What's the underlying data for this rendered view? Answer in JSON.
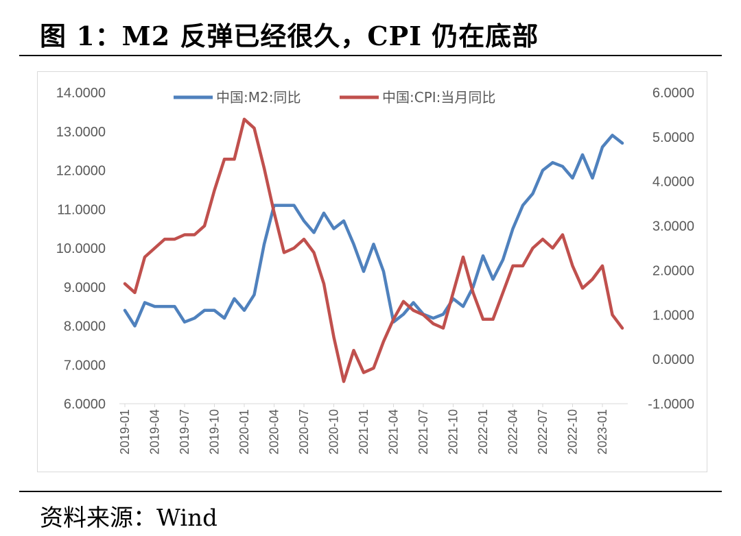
{
  "figure": {
    "title": "图 1：M2 反弹已经很久，CPI 仍在底部",
    "source": "资料来源：Wind"
  },
  "chart_data": {
    "type": "line",
    "title": "",
    "xlabel": "",
    "ylabel_left": "",
    "ylabel_right": "",
    "grid": false,
    "legend_position": "top-center",
    "ylim_left": [
      6,
      14
    ],
    "ylim_right": [
      -1,
      6
    ],
    "yticks_left": [
      "6.0000",
      "7.0000",
      "8.0000",
      "9.0000",
      "10.0000",
      "11.0000",
      "12.0000",
      "13.0000",
      "14.0000"
    ],
    "yticks_right": [
      "-1.0000",
      "0.0000",
      "1.0000",
      "2.0000",
      "3.0000",
      "4.0000",
      "5.0000",
      "6.0000"
    ],
    "x_tick_labels": [
      "2019-01",
      "2019-04",
      "2019-07",
      "2019-10",
      "2020-01",
      "2020-04",
      "2020-07",
      "2020-10",
      "2021-01",
      "2021-04",
      "2021-07",
      "2021-10",
      "2022-01",
      "2022-04",
      "2022-07",
      "2022-10",
      "2023-01"
    ],
    "x": [
      "2019-01",
      "2019-02",
      "2019-03",
      "2019-04",
      "2019-05",
      "2019-06",
      "2019-07",
      "2019-08",
      "2019-09",
      "2019-10",
      "2019-11",
      "2019-12",
      "2020-01",
      "2020-02",
      "2020-03",
      "2020-04",
      "2020-05",
      "2020-06",
      "2020-07",
      "2020-08",
      "2020-09",
      "2020-10",
      "2020-11",
      "2020-12",
      "2021-01",
      "2021-02",
      "2021-03",
      "2021-04",
      "2021-05",
      "2021-06",
      "2021-07",
      "2021-08",
      "2021-09",
      "2021-10",
      "2021-11",
      "2021-12",
      "2022-01",
      "2022-02",
      "2022-03",
      "2022-04",
      "2022-05",
      "2022-06",
      "2022-07",
      "2022-08",
      "2022-09",
      "2022-10",
      "2022-11",
      "2022-12",
      "2023-01",
      "2023-02",
      "2023-03"
    ],
    "series": [
      {
        "name": "中国:M2:同比",
        "axis": "left",
        "color": "#4f81bd",
        "values": [
          8.4,
          8.0,
          8.6,
          8.5,
          8.5,
          8.5,
          8.1,
          8.2,
          8.4,
          8.4,
          8.2,
          8.7,
          8.4,
          8.8,
          10.1,
          11.1,
          11.1,
          11.1,
          10.7,
          10.4,
          10.9,
          10.5,
          10.7,
          10.1,
          9.4,
          10.1,
          9.4,
          8.1,
          8.3,
          8.6,
          8.3,
          8.2,
          8.3,
          8.7,
          8.5,
          9.0,
          9.8,
          9.2,
          9.7,
          10.5,
          11.1,
          11.4,
          12.0,
          12.2,
          12.1,
          11.8,
          12.4,
          11.8,
          12.6,
          12.9,
          12.7
        ]
      },
      {
        "name": "中国:CPI:当月同比",
        "axis": "right",
        "color": "#c0504d",
        "values": [
          1.7,
          1.5,
          2.3,
          2.5,
          2.7,
          2.7,
          2.8,
          2.8,
          3.0,
          3.8,
          4.5,
          4.5,
          5.4,
          5.2,
          4.3,
          3.3,
          2.4,
          2.5,
          2.7,
          2.4,
          1.7,
          0.5,
          -0.5,
          0.2,
          -0.3,
          -0.2,
          0.4,
          0.9,
          1.3,
          1.1,
          1.0,
          0.8,
          0.7,
          1.5,
          2.3,
          1.5,
          0.9,
          0.9,
          1.5,
          2.1,
          2.1,
          2.5,
          2.7,
          2.5,
          2.8,
          2.1,
          1.6,
          1.8,
          2.1,
          1.0,
          0.7
        ]
      }
    ]
  }
}
